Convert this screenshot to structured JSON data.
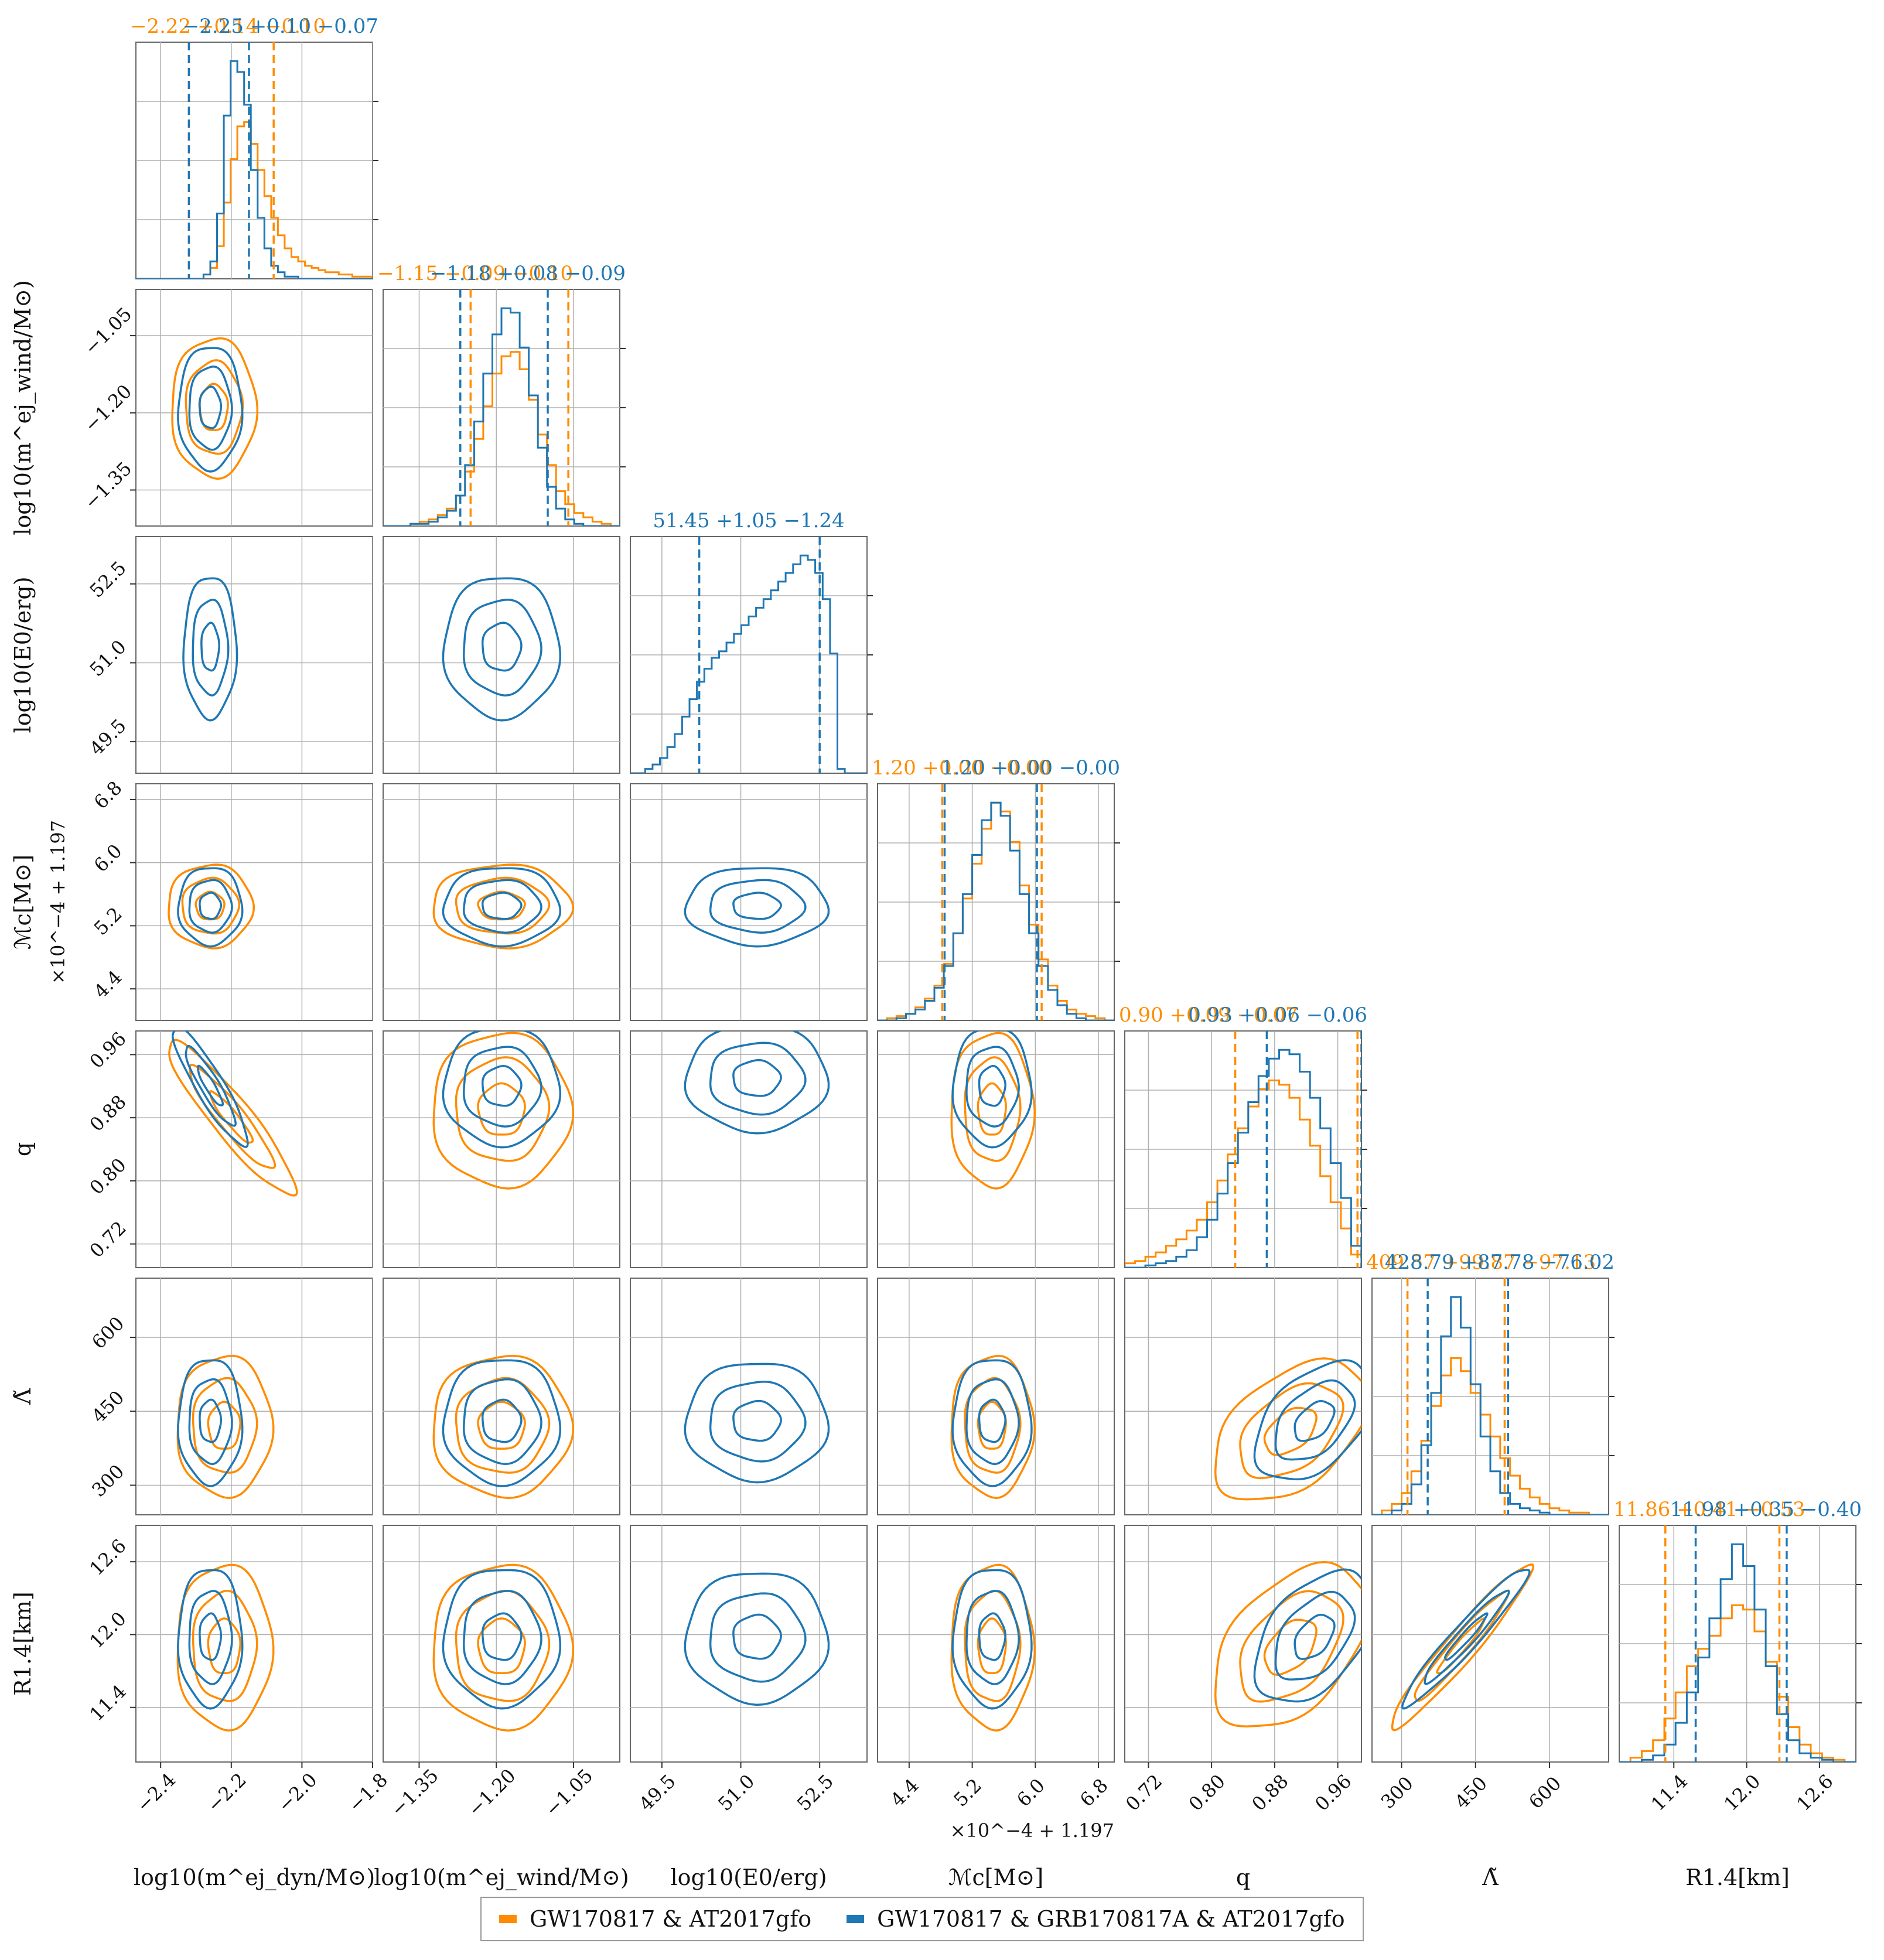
{
  "chart_data": {
    "type": "corner",
    "series": [
      {
        "name": "GW170817 & AT2017gfo",
        "color": "#ff8c00"
      },
      {
        "name": "GW170817 & GRB170817A & AT2017gfo",
        "color": "#1f77b4"
      }
    ],
    "parameters": [
      {
        "key": "mdyn",
        "label": "log10(m^ej_dyn/M⊙)",
        "range": [
          -2.47,
          -1.8
        ],
        "ticks": [
          -2.4,
          -2.2,
          -2.0,
          -1.8
        ],
        "tick_labels": [
          "−2.4",
          "−2.2",
          "−2.0",
          "−1.8"
        ],
        "titles": [
          {
            "text": "−2.22 +0.14 −0.10",
            "series": 0
          },
          {
            "text": "−2.25 +0.10 −0.07",
            "series": 1
          }
        ],
        "quantiles": [
          [
            -2.32,
            -2.22,
            -2.08
          ],
          [
            -2.32,
            -2.25,
            -2.15
          ]
        ],
        "hist": [
          [
            0.0,
            0.0,
            0.0,
            0.0,
            0.0,
            0.0,
            0.0,
            0.0,
            0.0,
            0.0,
            0.02,
            0.05,
            0.15,
            0.35,
            0.55,
            0.7,
            0.72,
            0.62,
            0.5,
            0.38,
            0.28,
            0.2,
            0.14,
            0.1,
            0.08,
            0.06,
            0.05,
            0.04,
            0.03,
            0.03,
            0.02,
            0.02,
            0.01,
            0.01,
            0.01
          ],
          [
            0.0,
            0.0,
            0.0,
            0.0,
            0.0,
            0.0,
            0.0,
            0.0,
            0.0,
            0.0,
            0.02,
            0.08,
            0.3,
            0.75,
            1.0,
            0.95,
            0.8,
            0.5,
            0.28,
            0.14,
            0.06,
            0.03,
            0.01,
            0.01,
            0.0,
            0.0,
            0.0,
            0.0,
            0.0,
            0.0,
            0.0,
            0.0,
            0.0,
            0.0,
            0.0
          ]
        ]
      },
      {
        "key": "mwind",
        "label": "log10(m^ej_wind/M⊙)",
        "range": [
          -1.42,
          -0.96
        ],
        "ticks": [
          -1.35,
          -1.2,
          -1.05
        ],
        "tick_labels": [
          "−1.35",
          "−1.20",
          "−1.05"
        ],
        "titles": [
          {
            "text": "−1.15 +0.09 −0.10",
            "series": 0
          },
          {
            "text": "−1.18 +0.08 −0.09",
            "series": 1
          }
        ],
        "quantiles": [
          [
            -1.25,
            -1.15,
            -1.06
          ],
          [
            -1.27,
            -1.18,
            -1.1
          ]
        ],
        "hist": [
          [
            0.0,
            0.0,
            0.0,
            0.01,
            0.02,
            0.03,
            0.05,
            0.08,
            0.14,
            0.25,
            0.4,
            0.55,
            0.7,
            0.78,
            0.8,
            0.72,
            0.58,
            0.42,
            0.28,
            0.16,
            0.1,
            0.06,
            0.04,
            0.02,
            0.01,
            0.0
          ],
          [
            0.0,
            0.0,
            0.0,
            0.01,
            0.01,
            0.02,
            0.04,
            0.07,
            0.14,
            0.28,
            0.48,
            0.7,
            0.88,
            1.0,
            0.98,
            0.82,
            0.6,
            0.36,
            0.18,
            0.08,
            0.03,
            0.01,
            0.0,
            0.0,
            0.0,
            0.0
          ]
        ]
      },
      {
        "key": "E0",
        "label": "log10(E0/erg)",
        "range": [
          48.9,
          53.4
        ],
        "ticks": [
          49.5,
          51.0,
          52.5
        ],
        "tick_labels": [
          "49.5",
          "51.0",
          "52.5"
        ],
        "titles": [
          {
            "text": "51.45 +1.05 −1.24",
            "series": 1
          }
        ],
        "quantiles": [
          null,
          [
            50.21,
            51.45,
            52.5
          ]
        ],
        "hist": [
          null,
          [
            0.0,
            0.0,
            0.02,
            0.04,
            0.07,
            0.12,
            0.18,
            0.26,
            0.34,
            0.42,
            0.48,
            0.53,
            0.56,
            0.6,
            0.64,
            0.68,
            0.72,
            0.76,
            0.8,
            0.84,
            0.88,
            0.92,
            0.96,
            1.0,
            0.98,
            0.92,
            0.8,
            0.55,
            0.02,
            0.0,
            0.0,
            0.0
          ]
        ]
      },
      {
        "key": "Mc",
        "label": "ℳc[M⊙]",
        "offset_label": "×10^−4 + 1.197",
        "range": [
          4.0,
          7.0
        ],
        "ticks": [
          4.4,
          5.2,
          6.0,
          6.8
        ],
        "tick_labels": [
          "4.4",
          "5.2",
          "6.0",
          "6.8"
        ],
        "titles": [
          {
            "text": "1.20 +0.00 −0.00",
            "series": 0
          },
          {
            "text": "1.20 +0.00 −0.00",
            "series": 1
          }
        ],
        "quantiles": [
          [
            4.82,
            5.45,
            6.08
          ],
          [
            4.85,
            5.45,
            6.02
          ]
        ],
        "hist": [
          [
            0.0,
            0.01,
            0.02,
            0.03,
            0.06,
            0.1,
            0.16,
            0.26,
            0.4,
            0.56,
            0.72,
            0.88,
            1.0,
            0.96,
            0.82,
            0.62,
            0.44,
            0.28,
            0.16,
            0.09,
            0.05,
            0.03,
            0.02,
            0.01,
            0.0
          ],
          [
            0.0,
            0.0,
            0.01,
            0.03,
            0.05,
            0.09,
            0.15,
            0.25,
            0.4,
            0.58,
            0.76,
            0.92,
            1.0,
            0.94,
            0.78,
            0.58,
            0.4,
            0.25,
            0.14,
            0.07,
            0.03,
            0.01,
            0.0,
            0.0,
            0.0
          ]
        ]
      },
      {
        "key": "q",
        "label": "q",
        "range": [
          0.69,
          0.99
        ],
        "ticks": [
          0.72,
          0.8,
          0.88,
          0.96
        ],
        "tick_labels": [
          "0.72",
          "0.80",
          "0.88",
          "0.96"
        ],
        "titles": [
          {
            "text": "0.90 +0.09 −0.07",
            "series": 0
          },
          {
            "text": "0.93 +0.06 −0.06",
            "series": 1
          }
        ],
        "quantiles": [
          [
            0.83,
            0.9,
            0.985
          ],
          [
            0.87,
            0.93,
            0.99
          ]
        ],
        "hist": [
          [
            0.02,
            0.03,
            0.05,
            0.07,
            0.1,
            0.13,
            0.17,
            0.22,
            0.3,
            0.4,
            0.52,
            0.64,
            0.74,
            0.82,
            0.86,
            0.84,
            0.78,
            0.68,
            0.56,
            0.42,
            0.3,
            0.18,
            0.06
          ],
          [
            0.0,
            0.0,
            0.01,
            0.02,
            0.03,
            0.05,
            0.08,
            0.14,
            0.22,
            0.34,
            0.48,
            0.62,
            0.76,
            0.88,
            0.96,
            1.0,
            0.98,
            0.9,
            0.78,
            0.64,
            0.48,
            0.32,
            0.1
          ]
        ]
      },
      {
        "key": "Lambda",
        "label": "Λ̃",
        "range": [
          240,
          720
        ],
        "ticks": [
          300,
          450,
          600
        ],
        "tick_labels": [
          "300",
          "450",
          "600"
        ],
        "titles": [
          {
            "text": "409.57 +99.87 −97.13",
            "series": 0
          },
          {
            "text": "428.79 +87.78 −76.02",
            "series": 1
          }
        ],
        "quantiles": [
          [
            312,
            409,
            509
          ],
          [
            353,
            428,
            516
          ]
        ],
        "hist": [
          [
            0.0,
            0.02,
            0.05,
            0.1,
            0.2,
            0.34,
            0.5,
            0.64,
            0.72,
            0.66,
            0.56,
            0.46,
            0.36,
            0.26,
            0.18,
            0.12,
            0.08,
            0.05,
            0.03,
            0.02,
            0.01,
            0.01,
            0.0,
            0.0
          ],
          [
            0.0,
            0.0,
            0.02,
            0.05,
            0.14,
            0.32,
            0.56,
            0.82,
            1.0,
            0.86,
            0.6,
            0.36,
            0.2,
            0.1,
            0.05,
            0.03,
            0.02,
            0.01,
            0.0,
            0.0,
            0.0,
            0.0,
            0.0,
            0.0
          ]
        ]
      },
      {
        "key": "R14",
        "label": "R1.4[km]",
        "range": [
          10.95,
          12.9
        ],
        "ticks": [
          11.4,
          12.0,
          12.6
        ],
        "tick_labels": [
          "11.4",
          "12.0",
          "12.6"
        ],
        "titles": [
          {
            "text": "11.86 +0.41 −0.53",
            "series": 0
          },
          {
            "text": "11.98 +0.35 −0.40",
            "series": 1
          }
        ],
        "quantiles": [
          [
            11.33,
            11.86,
            12.27
          ],
          [
            11.58,
            11.98,
            12.33
          ]
        ],
        "hist": [
          [
            0.0,
            0.02,
            0.05,
            0.1,
            0.2,
            0.32,
            0.44,
            0.52,
            0.58,
            0.66,
            0.72,
            0.7,
            0.6,
            0.46,
            0.3,
            0.16,
            0.08,
            0.04,
            0.02,
            0.01,
            0.0
          ],
          [
            0.0,
            0.0,
            0.01,
            0.03,
            0.08,
            0.18,
            0.32,
            0.48,
            0.66,
            0.84,
            1.0,
            0.9,
            0.7,
            0.44,
            0.22,
            0.1,
            0.04,
            0.02,
            0.01,
            0.0,
            0.0
          ]
        ]
      }
    ],
    "contours": [
      {
        "x": "mdyn",
        "y": "mwind",
        "series": [
          {
            "center": [
              -2.25,
              -1.19
            ],
            "sx": 0.08,
            "sy": 0.09,
            "rho": 0.0
          },
          {
            "center": [
              -2.26,
              -1.19
            ],
            "sx": 0.06,
            "sy": 0.08,
            "rho": 0.0
          }
        ]
      },
      {
        "x": "mdyn",
        "y": "E0",
        "series": [
          null,
          {
            "center": [
              -2.26,
              51.3
            ],
            "sx": 0.05,
            "sy": 0.9,
            "rho": 0.0
          }
        ]
      },
      {
        "x": "mwind",
        "y": "E0",
        "series": [
          null,
          {
            "center": [
              -1.19,
              51.3
            ],
            "sx": 0.075,
            "sy": 0.9,
            "rho": 0.0
          }
        ]
      },
      {
        "x": "mdyn",
        "y": "Mc",
        "series": [
          {
            "center": [
              -2.26,
              5.45
            ],
            "sx": 0.08,
            "sy": 0.35,
            "rho": 0.0
          },
          {
            "center": [
              -2.26,
              5.45
            ],
            "sx": 0.06,
            "sy": 0.33,
            "rho": 0.0
          }
        ]
      },
      {
        "x": "mwind",
        "y": "Mc",
        "series": [
          {
            "center": [
              -1.19,
              5.45
            ],
            "sx": 0.09,
            "sy": 0.35,
            "rho": 0.0
          },
          {
            "center": [
              -1.19,
              5.45
            ],
            "sx": 0.075,
            "sy": 0.33,
            "rho": 0.0
          }
        ]
      },
      {
        "x": "E0",
        "y": "Mc",
        "series": [
          null,
          {
            "center": [
              51.3,
              5.45
            ],
            "sx": 0.9,
            "sy": 0.33,
            "rho": 0.0
          }
        ]
      },
      {
        "x": "mdyn",
        "y": "q",
        "series": [
          {
            "center": [
              -2.2,
              0.88
            ],
            "sx": 0.12,
            "sy": 0.065,
            "rho": -0.92
          },
          {
            "center": [
              -2.26,
              0.92
            ],
            "sx": 0.07,
            "sy": 0.05,
            "rho": -0.9
          }
        ]
      },
      {
        "x": "mwind",
        "y": "q",
        "series": [
          {
            "center": [
              -1.19,
              0.89
            ],
            "sx": 0.09,
            "sy": 0.065,
            "rho": 0.0
          },
          {
            "center": [
              -1.19,
              0.92
            ],
            "sx": 0.075,
            "sy": 0.05,
            "rho": 0.0
          }
        ]
      },
      {
        "x": "E0",
        "y": "q",
        "series": [
          null,
          {
            "center": [
              51.3,
              0.93
            ],
            "sx": 0.9,
            "sy": 0.045,
            "rho": 0.0
          }
        ]
      },
      {
        "x": "Mc",
        "y": "q",
        "series": [
          {
            "center": [
              5.45,
              0.89
            ],
            "sx": 0.35,
            "sy": 0.065,
            "rho": 0.0
          },
          {
            "center": [
              5.45,
              0.92
            ],
            "sx": 0.33,
            "sy": 0.05,
            "rho": 0.0
          }
        ]
      },
      {
        "x": "mdyn",
        "y": "Lambda",
        "series": [
          {
            "center": [
              -2.22,
              420
            ],
            "sx": 0.09,
            "sy": 95,
            "rho": 0.0
          },
          {
            "center": [
              -2.26,
              430
            ],
            "sx": 0.06,
            "sy": 85,
            "rho": 0.0
          }
        ]
      },
      {
        "x": "mwind",
        "y": "Lambda",
        "series": [
          {
            "center": [
              -1.19,
              420
            ],
            "sx": 0.09,
            "sy": 95,
            "rho": 0.0
          },
          {
            "center": [
              -1.19,
              430
            ],
            "sx": 0.075,
            "sy": 85,
            "rho": 0.0
          }
        ]
      },
      {
        "x": "E0",
        "y": "Lambda",
        "series": [
          null,
          {
            "center": [
              51.3,
              430
            ],
            "sx": 0.9,
            "sy": 80,
            "rho": 0.0
          }
        ]
      },
      {
        "x": "Mc",
        "y": "Lambda",
        "series": [
          {
            "center": [
              5.45,
              420
            ],
            "sx": 0.35,
            "sy": 95,
            "rho": 0.0
          },
          {
            "center": [
              5.45,
              430
            ],
            "sx": 0.33,
            "sy": 85,
            "rho": 0.0
          }
        ]
      },
      {
        "x": "q",
        "y": "Lambda",
        "series": [
          {
            "center": [
              0.9,
              410
            ],
            "sx": 0.065,
            "sy": 95,
            "rho": 0.45
          },
          {
            "center": [
              0.93,
              430
            ],
            "sx": 0.05,
            "sy": 80,
            "rho": 0.45
          }
        ]
      },
      {
        "x": "mdyn",
        "y": "R14",
        "series": [
          {
            "center": [
              -2.22,
              11.9
            ],
            "sx": 0.09,
            "sy": 0.45,
            "rho": 0.0
          },
          {
            "center": [
              -2.26,
              11.98
            ],
            "sx": 0.06,
            "sy": 0.38,
            "rho": 0.0
          }
        ]
      },
      {
        "x": "mwind",
        "y": "R14",
        "series": [
          {
            "center": [
              -1.19,
              11.9
            ],
            "sx": 0.09,
            "sy": 0.45,
            "rho": 0.0
          },
          {
            "center": [
              -1.19,
              11.98
            ],
            "sx": 0.075,
            "sy": 0.38,
            "rho": 0.0
          }
        ]
      },
      {
        "x": "E0",
        "y": "R14",
        "series": [
          null,
          {
            "center": [
              51.3,
              11.98
            ],
            "sx": 0.9,
            "sy": 0.36,
            "rho": 0.0
          }
        ]
      },
      {
        "x": "Mc",
        "y": "R14",
        "series": [
          {
            "center": [
              5.45,
              11.9
            ],
            "sx": 0.35,
            "sy": 0.45,
            "rho": 0.0
          },
          {
            "center": [
              5.45,
              11.98
            ],
            "sx": 0.33,
            "sy": 0.38,
            "rho": 0.0
          }
        ]
      },
      {
        "x": "q",
        "y": "R14",
        "series": [
          {
            "center": [
              0.9,
              11.9
            ],
            "sx": 0.065,
            "sy": 0.45,
            "rho": 0.45
          },
          {
            "center": [
              0.93,
              11.98
            ],
            "sx": 0.05,
            "sy": 0.36,
            "rho": 0.45
          }
        ]
      },
      {
        "x": "Lambda",
        "y": "R14",
        "series": [
          {
            "center": [
              420,
              11.9
            ],
            "sx": 95,
            "sy": 0.45,
            "rho": 0.96
          },
          {
            "center": [
              430,
              11.98
            ],
            "sx": 85,
            "sy": 0.38,
            "rho": 0.96
          }
        ]
      }
    ],
    "contour_levels_sigma": [
      0.5,
      1.0,
      1.5
    ],
    "grid": true,
    "legend_position": "bottom-center"
  }
}
